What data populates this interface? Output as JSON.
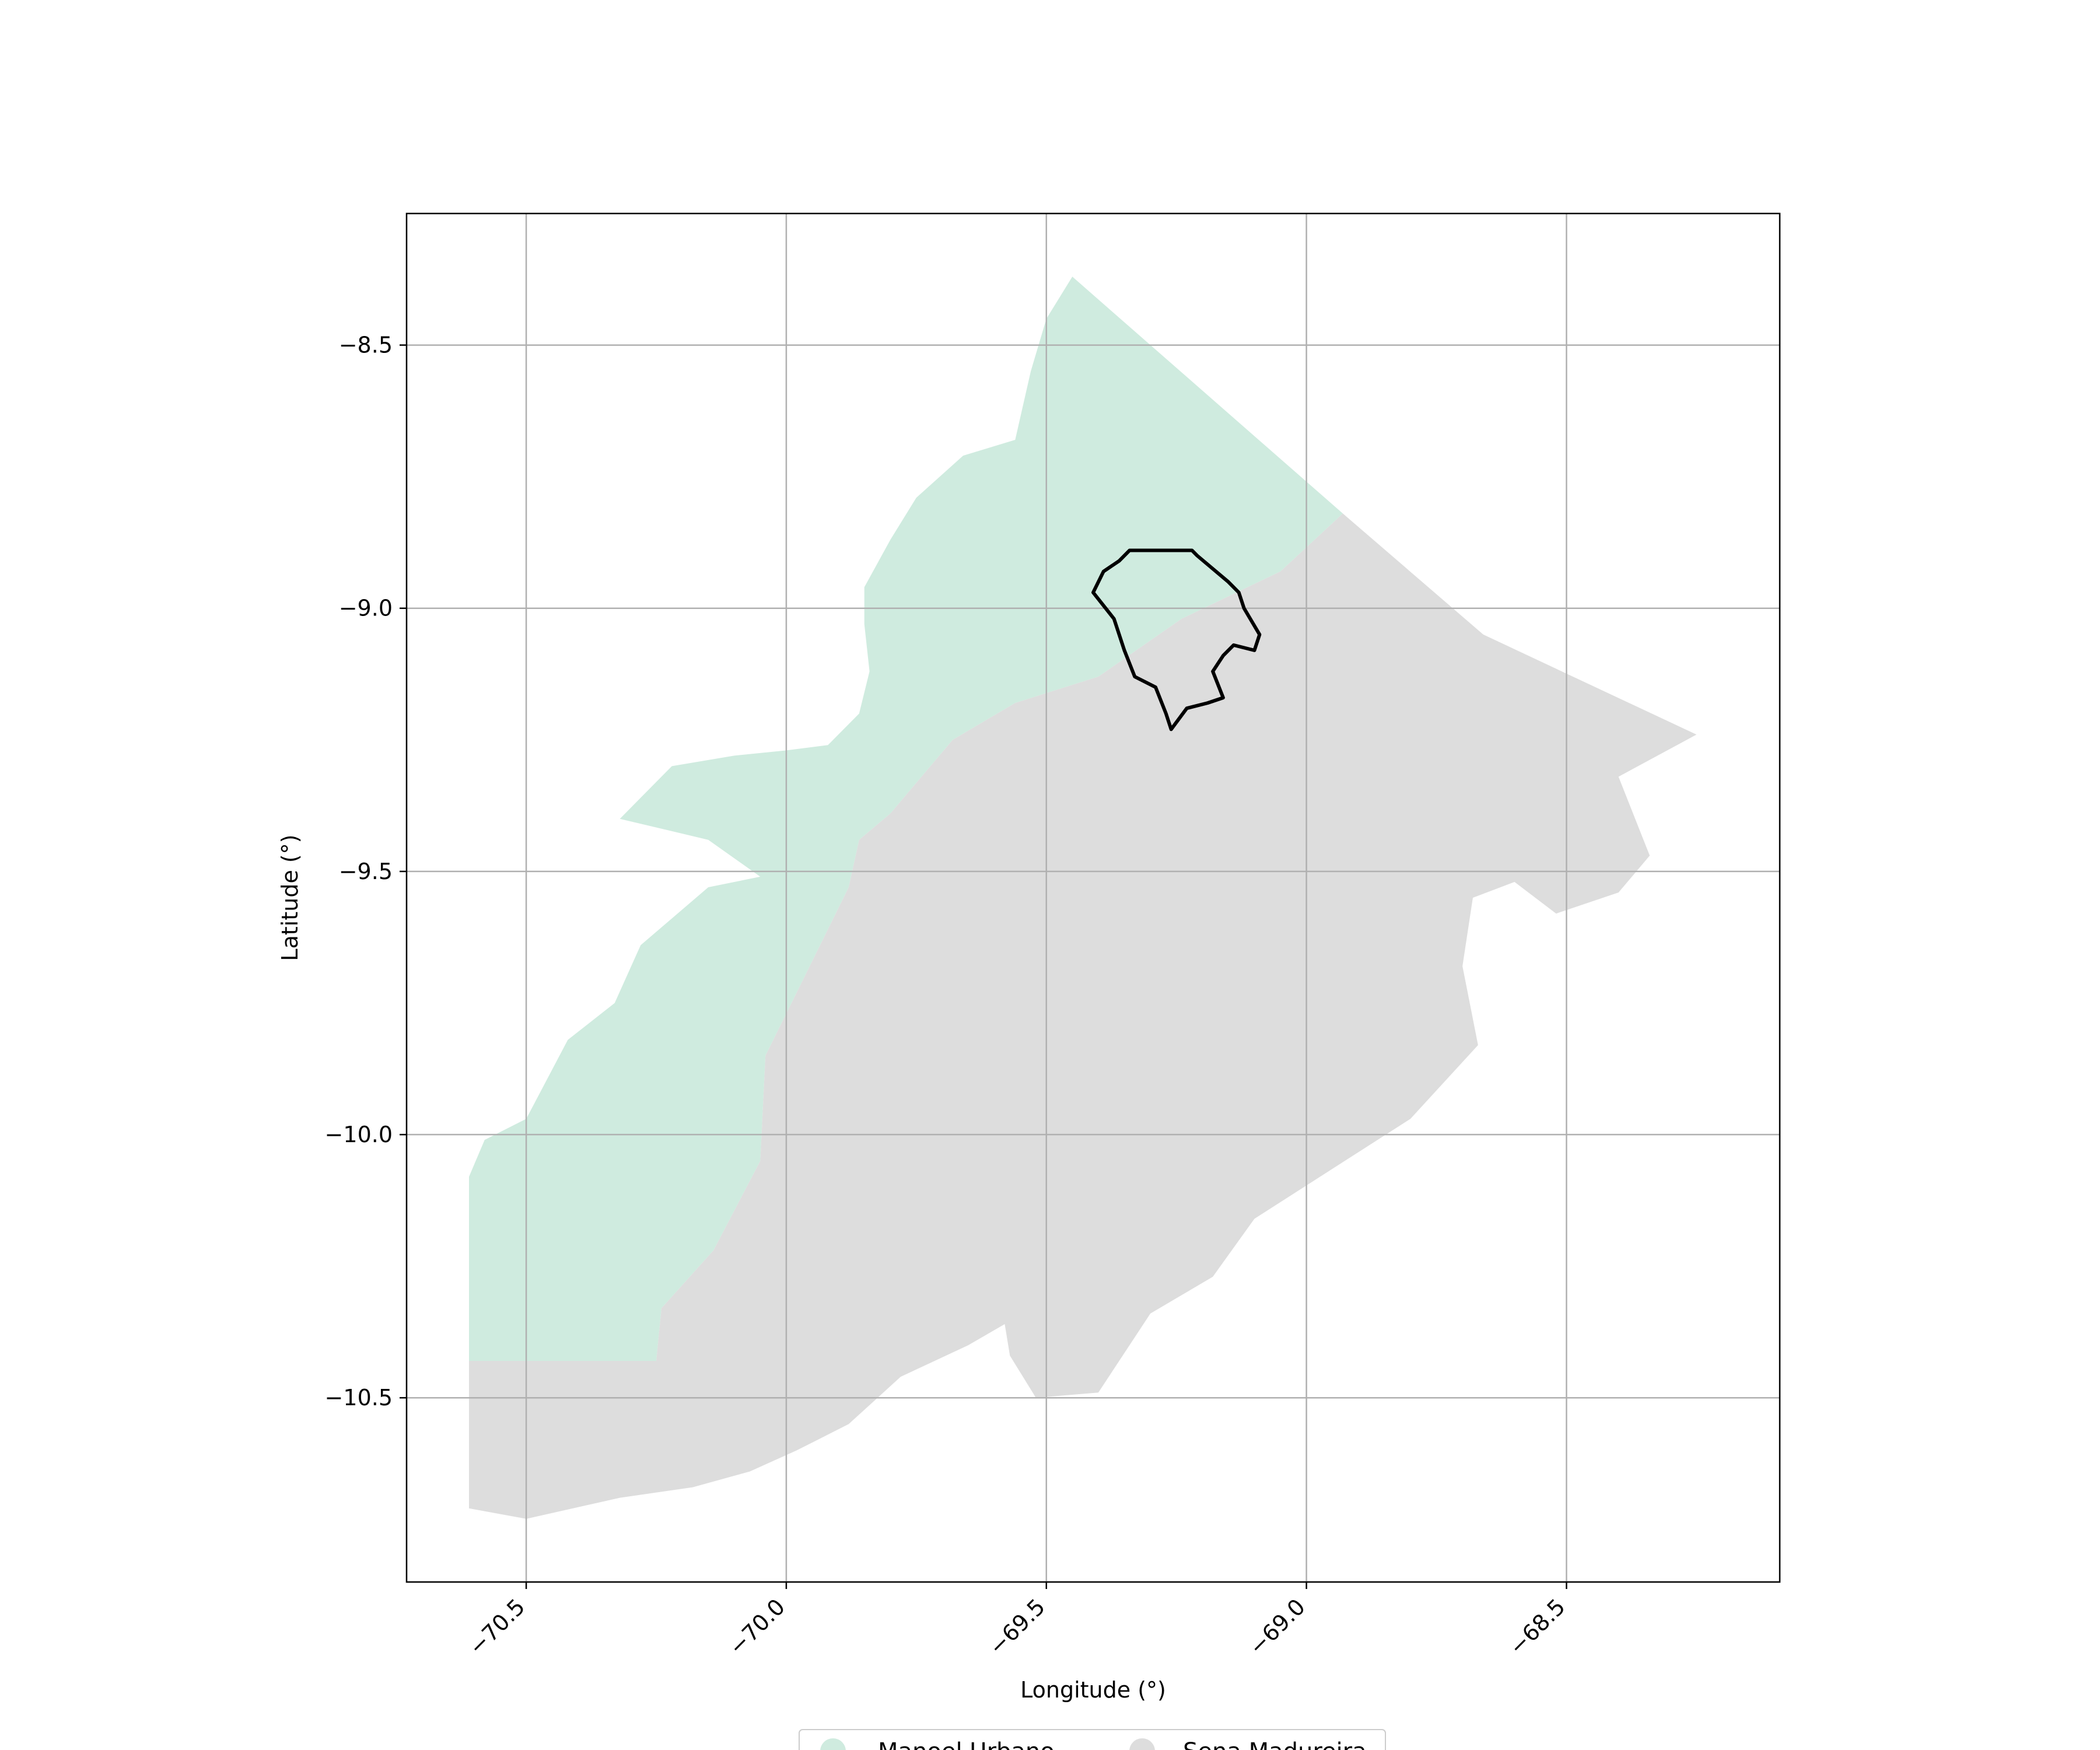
{
  "map": {
    "xlabel": "Longitude (°)",
    "ylabel": "Latitude (°)",
    "xlim": [
      -70.73,
      -68.09
    ],
    "ylim": [
      -10.85,
      -8.25
    ],
    "xticks": [
      -70.5,
      -70.0,
      -69.5,
      -69.0,
      -68.5
    ],
    "yticks": [
      -8.5,
      -9.0,
      -9.5,
      -10.0,
      -10.5
    ],
    "xtick_labels": [
      "−70.5",
      "−70.0",
      "−69.5",
      "−69.0",
      "−68.5"
    ],
    "ytick_labels": [
      "−8.5",
      "−9.0",
      "−9.5",
      "−10.0",
      "−10.5"
    ],
    "grid": true,
    "legend_position": "bottom-center",
    "regions": [
      {
        "name": "Manoel Urbano",
        "color": "#cfebdf",
        "coords": [
          [
            -69.45,
            -8.37
          ],
          [
            -69.5,
            -8.45
          ],
          [
            -69.53,
            -8.55
          ],
          [
            -69.56,
            -8.68
          ],
          [
            -69.66,
            -8.71
          ],
          [
            -69.75,
            -8.79
          ],
          [
            -69.8,
            -8.87
          ],
          [
            -69.85,
            -8.96
          ],
          [
            -69.85,
            -9.03
          ],
          [
            -69.84,
            -9.12
          ],
          [
            -69.86,
            -9.2
          ],
          [
            -69.92,
            -9.26
          ],
          [
            -70.0,
            -9.27
          ],
          [
            -70.1,
            -9.28
          ],
          [
            -70.22,
            -9.3
          ],
          [
            -70.32,
            -9.4
          ],
          [
            -70.15,
            -9.44
          ],
          [
            -70.05,
            -9.51
          ],
          [
            -70.15,
            -9.53
          ],
          [
            -70.28,
            -9.64
          ],
          [
            -70.33,
            -9.75
          ],
          [
            -70.42,
            -9.82
          ],
          [
            -70.5,
            -9.97
          ],
          [
            -70.58,
            -10.01
          ],
          [
            -70.61,
            -10.08
          ],
          [
            -70.61,
            -10.43
          ],
          [
            -70.25,
            -10.43
          ],
          [
            -70.24,
            -10.33
          ],
          [
            -70.14,
            -10.22
          ],
          [
            -70.05,
            -10.05
          ],
          [
            -70.04,
            -9.85
          ],
          [
            -69.97,
            -9.71
          ],
          [
            -69.88,
            -9.53
          ],
          [
            -69.86,
            -9.44
          ],
          [
            -69.8,
            -9.39
          ],
          [
            -69.68,
            -9.25
          ],
          [
            -69.56,
            -9.18
          ],
          [
            -69.4,
            -9.13
          ],
          [
            -69.24,
            -9.02
          ],
          [
            -69.05,
            -8.93
          ],
          [
            -68.93,
            -8.82
          ]
        ]
      },
      {
        "name": "Sena Madureira",
        "color": "#dddddd",
        "coords": [
          [
            -68.93,
            -8.82
          ],
          [
            -68.66,
            -9.05
          ],
          [
            -68.25,
            -9.24
          ],
          [
            -68.4,
            -9.32
          ],
          [
            -68.34,
            -9.47
          ],
          [
            -68.4,
            -9.54
          ],
          [
            -68.52,
            -9.58
          ],
          [
            -68.6,
            -9.52
          ],
          [
            -68.68,
            -9.55
          ],
          [
            -68.7,
            -9.68
          ],
          [
            -68.67,
            -9.83
          ],
          [
            -68.8,
            -9.97
          ],
          [
            -69.1,
            -10.16
          ],
          [
            -69.18,
            -10.27
          ],
          [
            -69.3,
            -10.34
          ],
          [
            -69.4,
            -10.49
          ],
          [
            -69.52,
            -10.5
          ],
          [
            -69.57,
            -10.42
          ],
          [
            -69.58,
            -10.36
          ],
          [
            -69.65,
            -10.4
          ],
          [
            -69.78,
            -10.46
          ],
          [
            -69.88,
            -10.55
          ],
          [
            -69.98,
            -10.6
          ],
          [
            -70.07,
            -10.64
          ],
          [
            -70.18,
            -10.67
          ],
          [
            -70.32,
            -10.69
          ],
          [
            -70.5,
            -10.73
          ],
          [
            -70.61,
            -10.71
          ],
          [
            -70.61,
            -10.43
          ],
          [
            -70.25,
            -10.43
          ],
          [
            -70.24,
            -10.33
          ],
          [
            -70.14,
            -10.22
          ],
          [
            -70.05,
            -10.05
          ],
          [
            -70.04,
            -9.85
          ],
          [
            -69.97,
            -9.71
          ],
          [
            -69.88,
            -9.53
          ],
          [
            -69.86,
            -9.44
          ],
          [
            -69.8,
            -9.39
          ],
          [
            -69.68,
            -9.25
          ],
          [
            -69.56,
            -9.18
          ],
          [
            -69.4,
            -9.13
          ],
          [
            -69.24,
            -9.02
          ],
          [
            -69.05,
            -8.93
          ]
        ]
      }
    ],
    "outline": {
      "color": "#000000",
      "coords": [
        [
          -69.22,
          -8.89
        ],
        [
          -69.34,
          -8.89
        ],
        [
          -69.36,
          -8.91
        ],
        [
          -69.39,
          -8.93
        ],
        [
          -69.41,
          -8.97
        ],
        [
          -69.37,
          -9.02
        ],
        [
          -69.35,
          -9.08
        ],
        [
          -69.33,
          -9.13
        ],
        [
          -69.29,
          -9.15
        ],
        [
          -69.27,
          -9.2
        ],
        [
          -69.26,
          -9.23
        ],
        [
          -69.23,
          -9.19
        ],
        [
          -69.19,
          -9.18
        ],
        [
          -69.16,
          -9.17
        ],
        [
          -69.18,
          -9.12
        ],
        [
          -69.16,
          -9.09
        ],
        [
          -69.14,
          -9.07
        ],
        [
          -69.1,
          -9.08
        ],
        [
          -69.09,
          -9.05
        ],
        [
          -69.12,
          -9.0
        ],
        [
          -69.13,
          -8.97
        ],
        [
          -69.15,
          -8.95
        ],
        [
          -69.21,
          -8.9
        ]
      ]
    }
  }
}
